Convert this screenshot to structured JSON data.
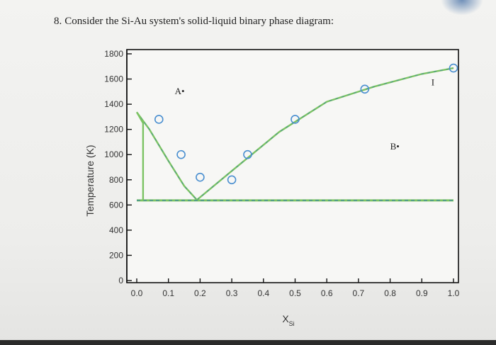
{
  "question": {
    "number": "8.",
    "text": "Consider the Si-Au system's solid-liquid binary phase diagram:"
  },
  "chart_data": {
    "type": "line",
    "title": "",
    "xlabel": "X",
    "xlabel_sub": "Si",
    "ylabel": "Temperature (K)",
    "xlim": [
      0.0,
      1.0
    ],
    "ylim": [
      0,
      1800
    ],
    "x_ticks": [
      "0.0",
      "0.1",
      "0.2",
      "0.3",
      "0.4",
      "0.5",
      "0.6",
      "0.7",
      "0.8",
      "0.9",
      "1.0"
    ],
    "y_ticks": [
      "0",
      "200",
      "400",
      "600",
      "800",
      "1000",
      "1200",
      "1400",
      "1600",
      "1800"
    ],
    "grid": false,
    "series": [
      {
        "role": "liquidus-au-side",
        "x": [
          0.0,
          0.04,
          0.1,
          0.15,
          0.19
        ],
        "y": [
          1337,
          1200,
          950,
          750,
          640
        ]
      },
      {
        "role": "liquidus-si-side",
        "x": [
          0.19,
          0.3,
          0.45,
          0.6,
          0.75,
          0.9,
          1.0
        ],
        "y": [
          640,
          870,
          1180,
          1420,
          1540,
          1640,
          1687
        ]
      },
      {
        "role": "eutectic-line",
        "x": [
          0.0,
          1.0
        ],
        "y": [
          636,
          636
        ]
      },
      {
        "role": "solidus-au-side",
        "x": [
          0.0,
          0.02,
          0.02
        ],
        "y": [
          1337,
          1250,
          636
        ]
      },
      {
        "role": "experimental-points",
        "x": [
          0.07,
          0.14,
          0.2,
          0.3,
          0.35,
          0.5,
          0.72,
          1.0
        ],
        "y": [
          1280,
          1000,
          820,
          800,
          1000,
          1280,
          1520,
          1687
        ]
      }
    ],
    "colors": {
      "curve": "#7cc363",
      "dashed": "#3a8a9a",
      "points": "#4a8fd0"
    },
    "annotations": [
      {
        "text": "A•",
        "x": 0.12,
        "y": 1480
      },
      {
        "text": "B•",
        "x": 0.8,
        "y": 1040
      },
      {
        "text": "I",
        "x": 0.93,
        "y": 1550
      }
    ]
  }
}
